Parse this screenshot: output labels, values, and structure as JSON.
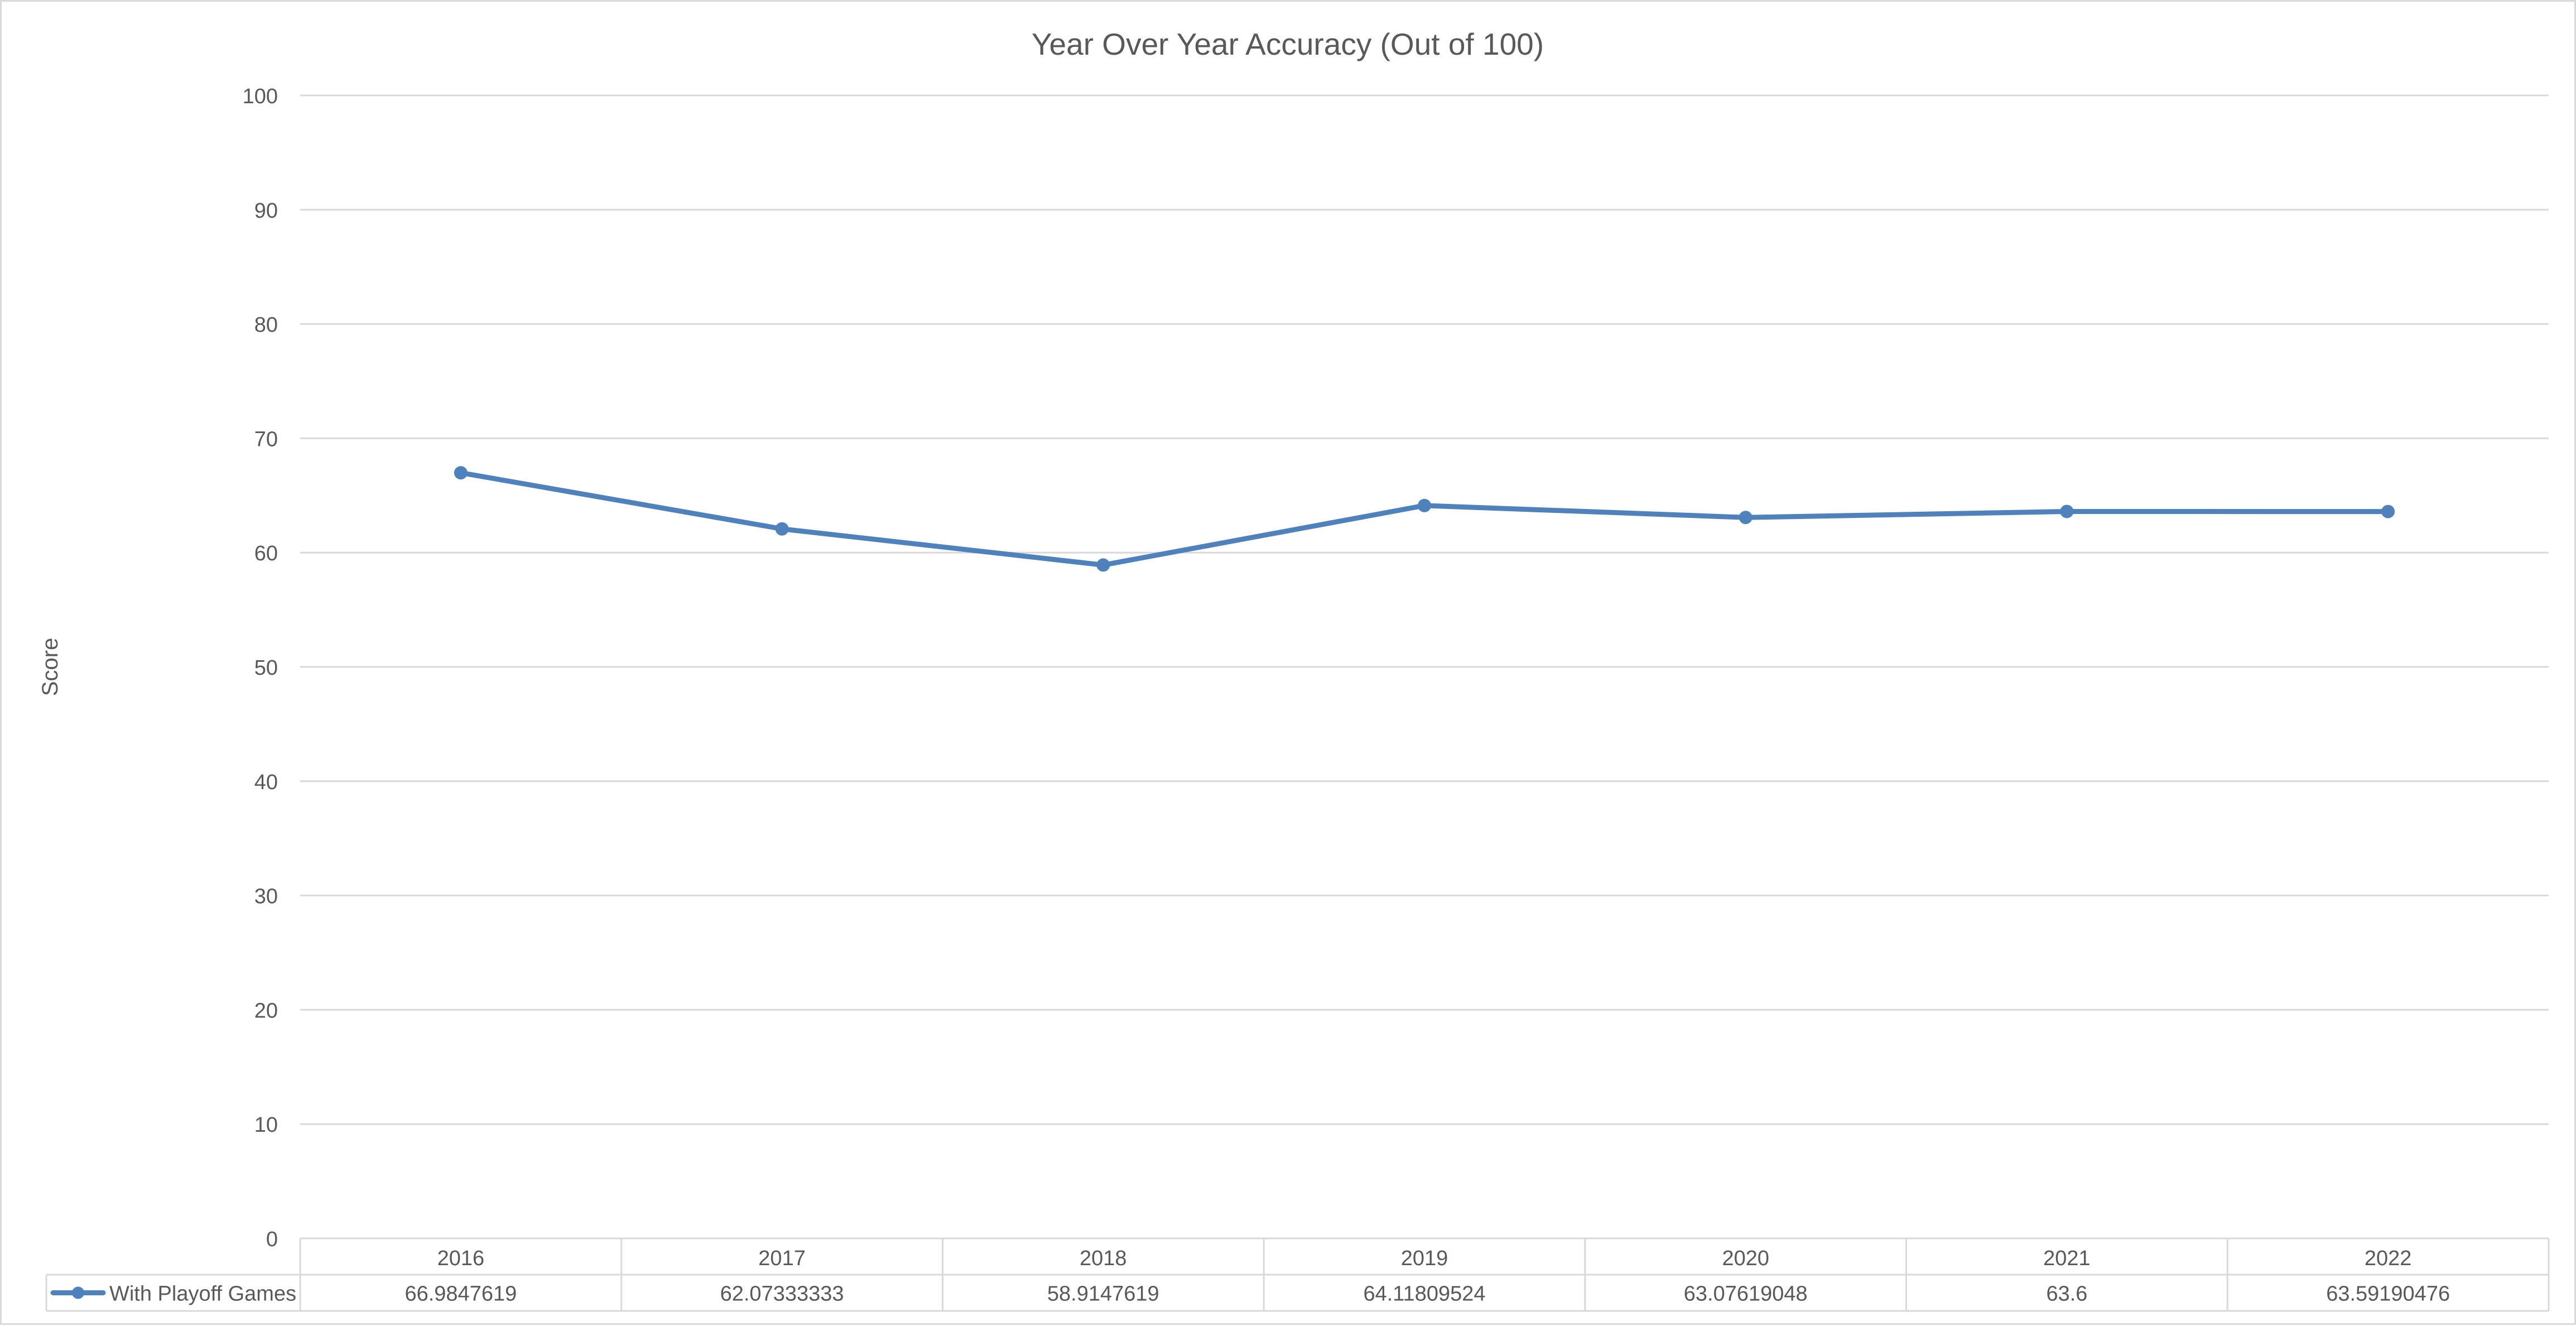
{
  "chart_data": {
    "type": "line",
    "title": "Year Over Year Accuracy (Out of 100)",
    "ylabel": "Score",
    "xlabel": "",
    "categories": [
      "2016",
      "2017",
      "2018",
      "2019",
      "2020",
      "2021",
      "2022"
    ],
    "series": [
      {
        "name": "With Playoff Games",
        "values": [
          66.9847619,
          62.07333333,
          58.9147619,
          64.11809524,
          63.07619048,
          63.6,
          63.59190476
        ],
        "labels": [
          "66.9847619",
          "62.07333333",
          "58.9147619",
          "64.11809524",
          "63.07619048",
          "63.6",
          "63.59190476"
        ],
        "color": "#4f81bd"
      }
    ],
    "ylim": [
      0,
      100
    ],
    "yticks": [
      "0",
      "10",
      "20",
      "30",
      "40",
      "50",
      "60",
      "70",
      "80",
      "90",
      "100"
    ],
    "grid": true,
    "legend": "data-table",
    "data_table": true
  },
  "colors": {
    "line": "#4f81bd",
    "grid": "#d9d9d9",
    "text": "#595959"
  }
}
